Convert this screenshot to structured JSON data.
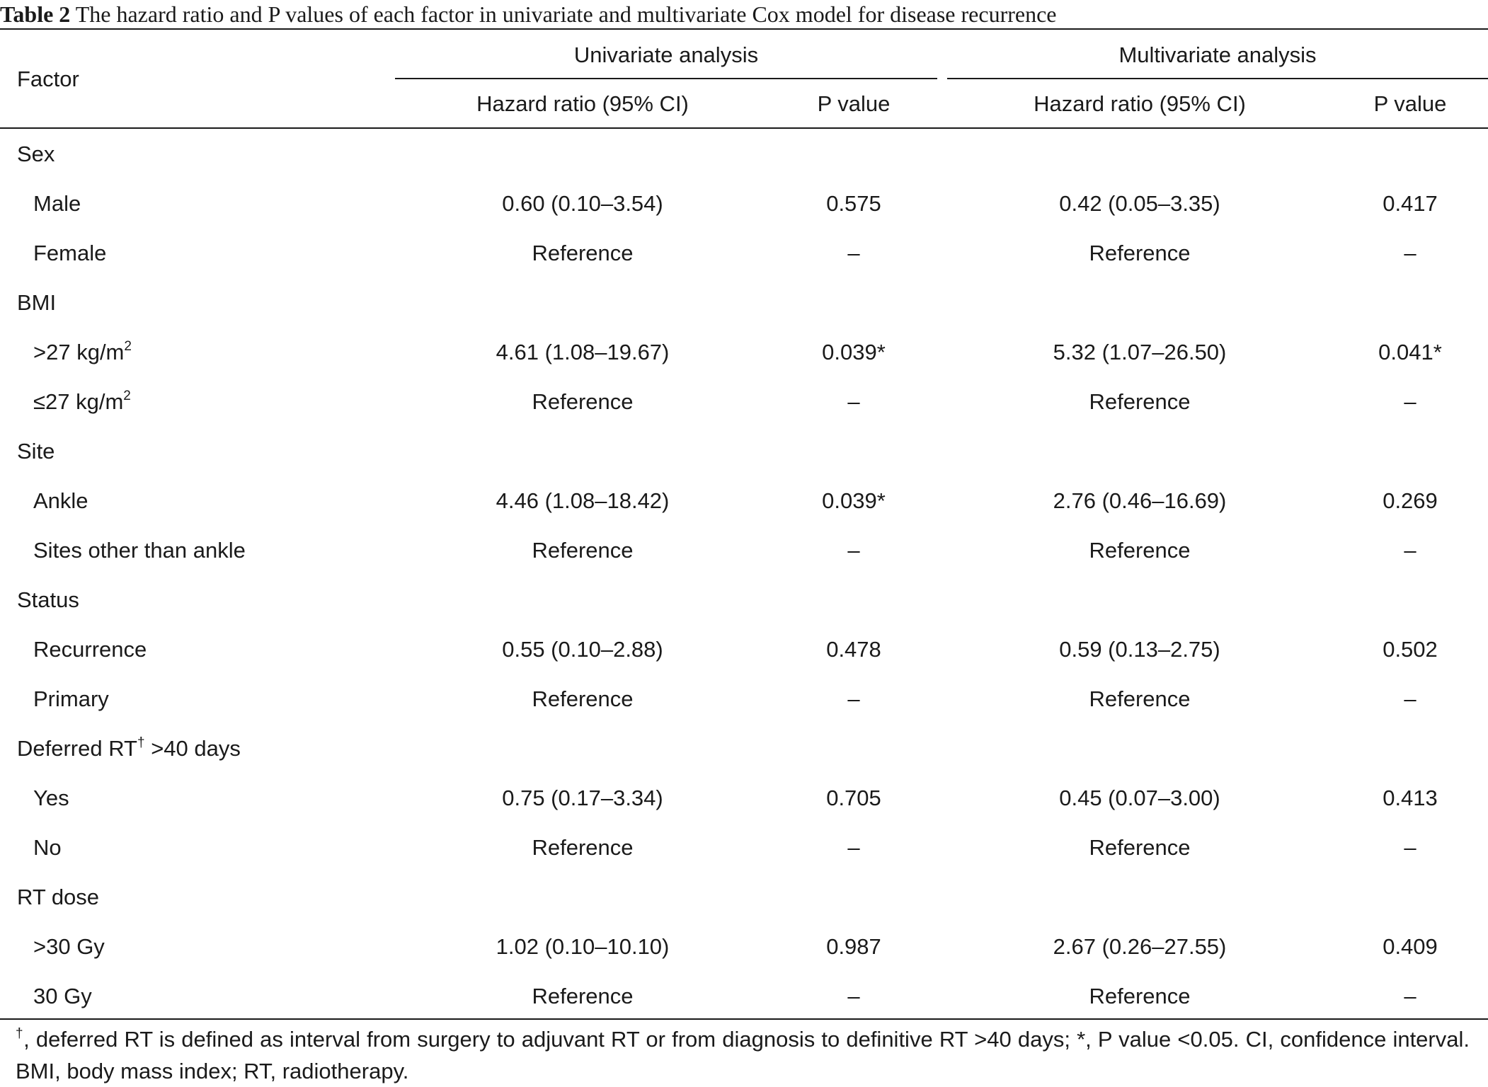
{
  "caption": {
    "label": "Table 2",
    "text": "The hazard ratio and P values of each factor in univariate and multivariate Cox model for disease recurrence"
  },
  "header": {
    "factor": "Factor",
    "univariate": "Univariate analysis",
    "multivariate": "Multivariate analysis",
    "hr": "Hazard ratio (95% CI)",
    "p": "P value"
  },
  "rows": [
    {
      "type": "group",
      "factor": "Sex"
    },
    {
      "type": "item",
      "factor": "Male",
      "uni_hr": "0.60 (0.10–3.54)",
      "uni_p": "0.575",
      "multi_hr": "0.42 (0.05–3.35)",
      "multi_p": "0.417"
    },
    {
      "type": "item",
      "factor": "Female",
      "uni_hr": "Reference",
      "uni_p": "–",
      "multi_hr": "Reference",
      "multi_p": "–"
    },
    {
      "type": "group",
      "factor": "BMI"
    },
    {
      "type": "item",
      "factor": ">27 kg/m",
      "factor_sup": "2",
      "uni_hr": "4.61 (1.08–19.67)",
      "uni_p": "0.039*",
      "multi_hr": "5.32 (1.07–26.50)",
      "multi_p": "0.041*"
    },
    {
      "type": "item",
      "factor": "≤27 kg/m",
      "factor_sup": "2",
      "uni_hr": "Reference",
      "uni_p": "–",
      "multi_hr": "Reference",
      "multi_p": "–"
    },
    {
      "type": "group",
      "factor": "Site"
    },
    {
      "type": "item",
      "factor": "Ankle",
      "uni_hr": "4.46 (1.08–18.42)",
      "uni_p": "0.039*",
      "multi_hr": "2.76 (0.46–16.69)",
      "multi_p": "0.269"
    },
    {
      "type": "item",
      "factor": "Sites other than ankle",
      "uni_hr": "Reference",
      "uni_p": "–",
      "multi_hr": "Reference",
      "multi_p": "–"
    },
    {
      "type": "group",
      "factor": "Status"
    },
    {
      "type": "item",
      "factor": "Recurrence",
      "uni_hr": "0.55 (0.10–2.88)",
      "uni_p": "0.478",
      "multi_hr": "0.59 (0.13–2.75)",
      "multi_p": "0.502"
    },
    {
      "type": "item",
      "factor": "Primary",
      "uni_hr": "Reference",
      "uni_p": "–",
      "multi_hr": "Reference",
      "multi_p": "–"
    },
    {
      "type": "group",
      "factor": "Deferred RT",
      "factor_sup": "†",
      "factor_tail": " >40 days"
    },
    {
      "type": "item",
      "factor": "Yes",
      "uni_hr": "0.75 (0.17–3.34)",
      "uni_p": "0.705",
      "multi_hr": "0.45 (0.07–3.00)",
      "multi_p": "0.413"
    },
    {
      "type": "item",
      "factor": "No",
      "uni_hr": "Reference",
      "uni_p": "–",
      "multi_hr": "Reference",
      "multi_p": "–"
    },
    {
      "type": "group",
      "factor": "RT dose"
    },
    {
      "type": "item",
      "factor": ">30 Gy",
      "uni_hr": "1.02 (0.10–10.10)",
      "uni_p": "0.987",
      "multi_hr": "2.67 (0.26–27.55)",
      "multi_p": "0.409"
    },
    {
      "type": "item",
      "factor": "30 Gy",
      "uni_hr": "Reference",
      "uni_p": "–",
      "multi_hr": "Reference",
      "multi_p": "–"
    }
  ],
  "footnote": {
    "mark": "†",
    "text": ", deferred RT is defined as interval from surgery to adjuvant RT or from diagnosis to definitive RT >40 days; *, P value <0.05. CI, confidence interval. BMI, body mass index; RT, radiotherapy."
  }
}
